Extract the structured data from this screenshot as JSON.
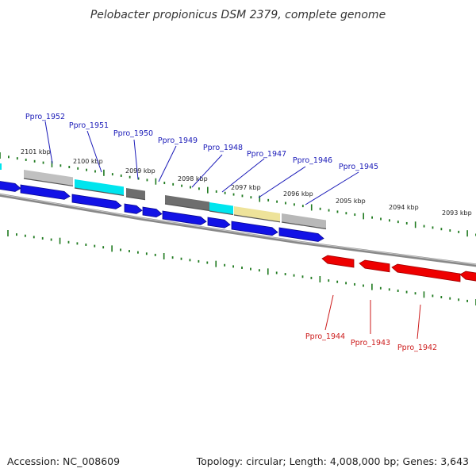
{
  "title": "Pelobacter propionicus DSM 2379, complete genome",
  "footer": {
    "accession": "Accession: NC_008609",
    "summary": "Topology: circular; Length: 4,008,000 bp; Genes: 3,643"
  },
  "colors": {
    "forward_gene": "#1212e6",
    "reverse_gene": "#ee0000",
    "backbone": "#888888",
    "tick": "#1f7a1f",
    "forward_label": "#1a1ab8",
    "reverse_label": "#cc1a1a",
    "scale_text": "#222222"
  },
  "scale_labels": [
    "2101 kbp",
    "2100 kbp",
    "2099 kbp",
    "2098 kbp",
    "2097 kbp",
    "2096 kbp",
    "2095 kbp",
    "2094 kbp",
    "2093 kbp"
  ],
  "forward_labels": [
    "Ppro_1952",
    "Ppro_1951",
    "Ppro_1950",
    "Ppro_1949",
    "Ppro_1948",
    "Ppro_1947",
    "Ppro_1946",
    "Ppro_1945"
  ],
  "reverse_labels": [
    "Ppro_1944",
    "Ppro_1943",
    "Ppro_1942"
  ],
  "feature_colors": [
    "#c0c0c0",
    "#00e5ee",
    "#6e6e6e",
    "#6e6e6e",
    "#00e5ee",
    "#eee39a",
    "#b8b8b8"
  ]
}
